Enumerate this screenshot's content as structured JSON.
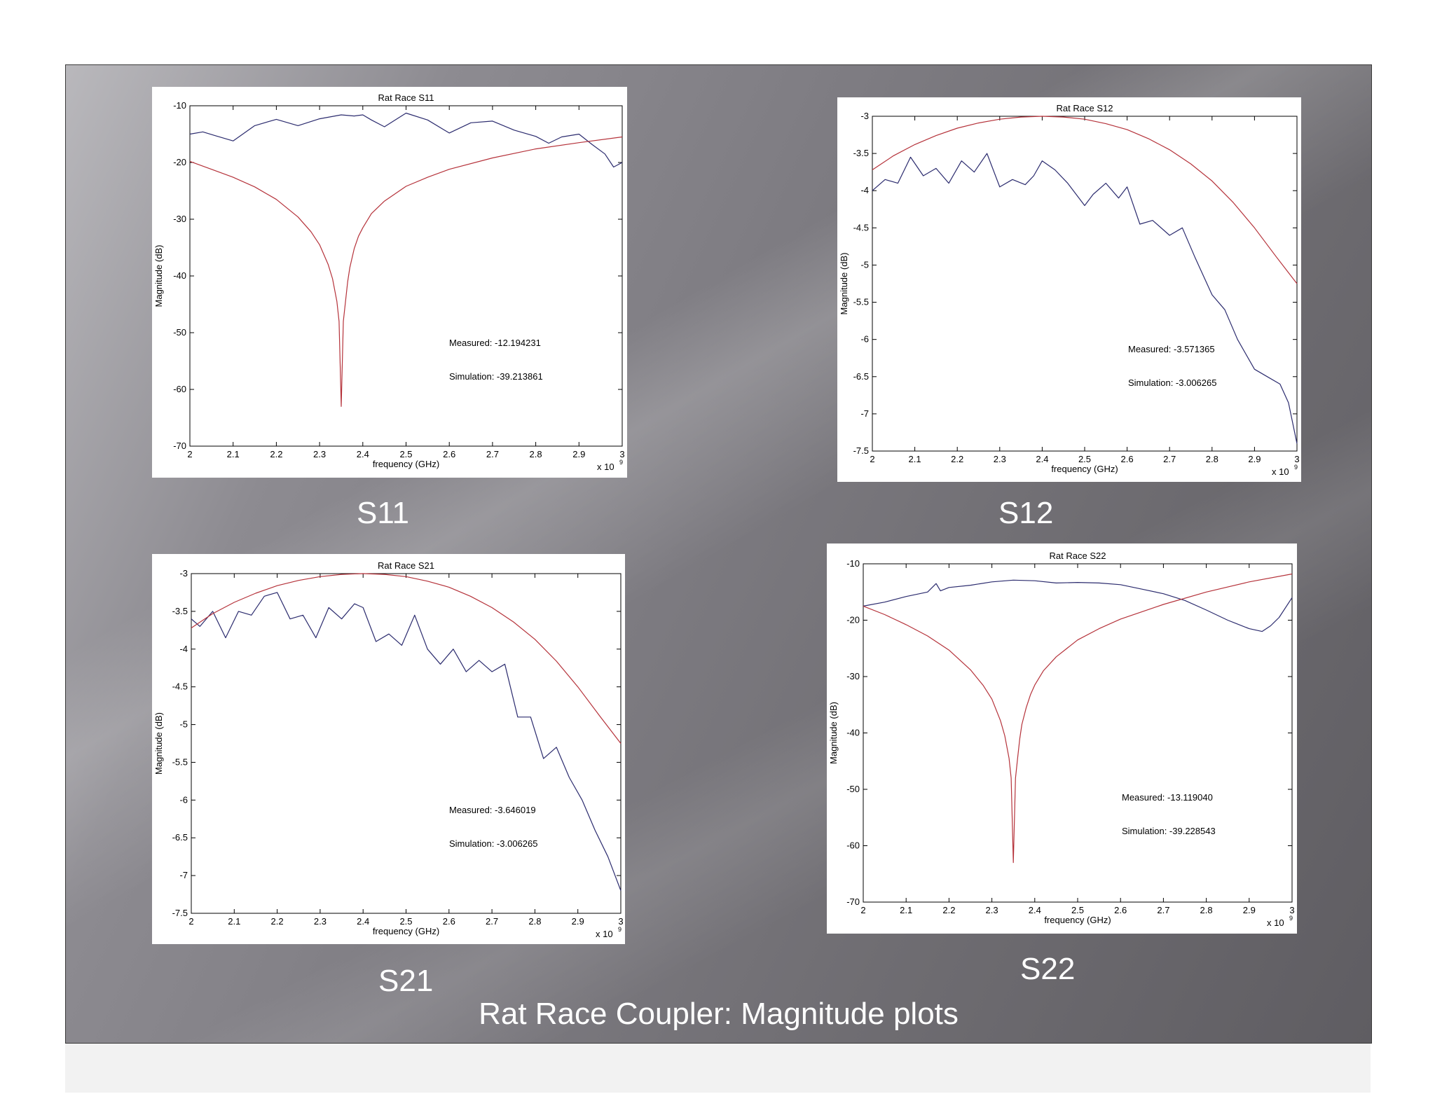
{
  "slide": {
    "title": "Rat Race Coupler: Magnitude plots",
    "background": "#77757a"
  },
  "labels": {
    "s11": "S11",
    "s12": "S12",
    "s21": "S21",
    "s22": "S22"
  },
  "colors": {
    "measured": "#2b2b6e",
    "simulation": "#b5323a",
    "frame": "#000000"
  },
  "chart_data": [
    {
      "id": "s11",
      "type": "line",
      "title": "Rat Race S11",
      "xlabel": "frequency (GHz)",
      "ylabel": "Magnitude (dB)",
      "x_multiplier": "x 10",
      "x_exponent": "9",
      "xlim": [
        2,
        3
      ],
      "ylim": [
        -70,
        -10
      ],
      "xticks": [
        "2",
        "2.1",
        "2.2",
        "2.3",
        "2.4",
        "2.5",
        "2.6",
        "2.7",
        "2.8",
        "2.9",
        "3"
      ],
      "yticks": [
        "-10",
        "-20",
        "-30",
        "-40",
        "-50",
        "-60",
        "-70"
      ],
      "annotations": [
        "Measured: -12.194231",
        "Simulation: -39.213861"
      ],
      "series": [
        {
          "role": "measured",
          "x": [
            2.0,
            2.03,
            2.06,
            2.1,
            2.15,
            2.2,
            2.25,
            2.3,
            2.35,
            2.38,
            2.4,
            2.42,
            2.45,
            2.5,
            2.55,
            2.6,
            2.65,
            2.7,
            2.75,
            2.8,
            2.83,
            2.86,
            2.9,
            2.93,
            2.96,
            2.98,
            3.0
          ],
          "y": [
            -15.0,
            -14.6,
            -15.3,
            -16.2,
            -13.5,
            -12.4,
            -13.5,
            -12.3,
            -11.6,
            -11.8,
            -11.6,
            -12.5,
            -13.7,
            -11.3,
            -12.5,
            -14.8,
            -13.0,
            -12.7,
            -14.3,
            -15.4,
            -16.6,
            -15.5,
            -15.0,
            -16.8,
            -18.5,
            -20.8,
            -20.0
          ]
        },
        {
          "role": "simulation",
          "x": [
            2.0,
            2.05,
            2.1,
            2.15,
            2.2,
            2.25,
            2.28,
            2.3,
            2.32,
            2.33,
            2.34,
            2.345,
            2.35,
            2.355,
            2.36,
            2.365,
            2.37,
            2.38,
            2.39,
            2.4,
            2.42,
            2.45,
            2.5,
            2.55,
            2.6,
            2.7,
            2.8,
            2.9,
            3.0
          ],
          "y": [
            -19.8,
            -21.2,
            -22.6,
            -24.3,
            -26.5,
            -29.6,
            -32.2,
            -34.5,
            -38.0,
            -40.5,
            -44.5,
            -48.0,
            -63.0,
            -48.0,
            -44.5,
            -41.0,
            -38.5,
            -35.2,
            -33.0,
            -31.5,
            -29.0,
            -26.8,
            -24.2,
            -22.6,
            -21.2,
            -19.2,
            -17.6,
            -16.5,
            -15.5
          ]
        }
      ]
    },
    {
      "id": "s12",
      "type": "line",
      "title": "Rat Race S12",
      "xlabel": "frequency (GHz)",
      "ylabel": "Magnitude (dB)",
      "x_multiplier": "x 10",
      "x_exponent": "9",
      "xlim": [
        2,
        3
      ],
      "ylim": [
        -7.5,
        -3
      ],
      "xticks": [
        "2",
        "2.1",
        "2.2",
        "2.3",
        "2.4",
        "2.5",
        "2.6",
        "2.7",
        "2.8",
        "2.9",
        "3"
      ],
      "yticks": [
        "-3",
        "-3.5",
        "-4",
        "-4.5",
        "-5",
        "-5.5",
        "-6",
        "-6.5",
        "-7",
        "-7.5"
      ],
      "annotations": [
        "Measured: -3.571365",
        "Simulation: -3.006265"
      ],
      "series": [
        {
          "role": "measured",
          "x": [
            2.0,
            2.03,
            2.06,
            2.09,
            2.12,
            2.15,
            2.18,
            2.21,
            2.24,
            2.27,
            2.3,
            2.33,
            2.36,
            2.38,
            2.4,
            2.43,
            2.46,
            2.5,
            2.52,
            2.55,
            2.58,
            2.6,
            2.63,
            2.66,
            2.7,
            2.73,
            2.76,
            2.8,
            2.83,
            2.86,
            2.9,
            2.93,
            2.96,
            2.98,
            3.0
          ],
          "y": [
            -4.0,
            -3.85,
            -3.9,
            -3.55,
            -3.8,
            -3.7,
            -3.9,
            -3.6,
            -3.75,
            -3.5,
            -3.95,
            -3.85,
            -3.92,
            -3.8,
            -3.6,
            -3.72,
            -3.9,
            -4.2,
            -4.05,
            -3.9,
            -4.1,
            -3.95,
            -4.45,
            -4.4,
            -4.6,
            -4.5,
            -4.9,
            -5.4,
            -5.6,
            -6.0,
            -6.4,
            -6.5,
            -6.6,
            -6.85,
            -7.4
          ]
        },
        {
          "role": "simulation",
          "x": [
            2.0,
            2.05,
            2.1,
            2.15,
            2.2,
            2.25,
            2.3,
            2.35,
            2.4,
            2.45,
            2.5,
            2.55,
            2.6,
            2.65,
            2.7,
            2.75,
            2.8,
            2.85,
            2.9,
            2.95,
            3.0
          ],
          "y": [
            -3.72,
            -3.53,
            -3.38,
            -3.26,
            -3.16,
            -3.09,
            -3.04,
            -3.01,
            -3.0,
            -3.01,
            -3.04,
            -3.1,
            -3.18,
            -3.3,
            -3.45,
            -3.64,
            -3.87,
            -4.16,
            -4.5,
            -4.88,
            -5.25
          ]
        }
      ]
    },
    {
      "id": "s21",
      "type": "line",
      "title": "Rat Race S21",
      "xlabel": "frequency (GHz)",
      "ylabel": "Magnitude (dB)",
      "x_multiplier": "x 10",
      "x_exponent": "9",
      "xlim": [
        2,
        3
      ],
      "ylim": [
        -7.5,
        -3
      ],
      "xticks": [
        "2",
        "2.1",
        "2.2",
        "2.3",
        "2.4",
        "2.5",
        "2.6",
        "2.7",
        "2.8",
        "2.9",
        "3"
      ],
      "yticks": [
        "-3",
        "-3.5",
        "-4",
        "-4.5",
        "-5",
        "-5.5",
        "-6",
        "-6.5",
        "-7",
        "-7.5"
      ],
      "annotations": [
        "Measured: -3.646019",
        "Simulation: -3.006265"
      ],
      "series": [
        {
          "role": "measured",
          "x": [
            2.0,
            2.02,
            2.05,
            2.08,
            2.11,
            2.14,
            2.17,
            2.2,
            2.23,
            2.26,
            2.29,
            2.32,
            2.35,
            2.38,
            2.4,
            2.43,
            2.46,
            2.49,
            2.52,
            2.55,
            2.58,
            2.61,
            2.64,
            2.67,
            2.7,
            2.73,
            2.76,
            2.79,
            2.82,
            2.85,
            2.88,
            2.91,
            2.94,
            2.97,
            3.0
          ],
          "y": [
            -3.6,
            -3.7,
            -3.5,
            -3.85,
            -3.5,
            -3.55,
            -3.3,
            -3.25,
            -3.6,
            -3.55,
            -3.85,
            -3.45,
            -3.6,
            -3.4,
            -3.45,
            -3.9,
            -3.8,
            -3.95,
            -3.55,
            -4.0,
            -4.2,
            -4.0,
            -4.3,
            -4.15,
            -4.3,
            -4.2,
            -4.9,
            -4.9,
            -5.45,
            -5.3,
            -5.7,
            -6.0,
            -6.4,
            -6.75,
            -7.2
          ]
        },
        {
          "role": "simulation",
          "x": [
            2.0,
            2.05,
            2.1,
            2.15,
            2.2,
            2.25,
            2.3,
            2.35,
            2.4,
            2.45,
            2.5,
            2.55,
            2.6,
            2.65,
            2.7,
            2.75,
            2.8,
            2.85,
            2.9,
            2.95,
            3.0
          ],
          "y": [
            -3.72,
            -3.53,
            -3.38,
            -3.26,
            -3.16,
            -3.09,
            -3.04,
            -3.01,
            -3.0,
            -3.01,
            -3.04,
            -3.1,
            -3.18,
            -3.3,
            -3.45,
            -3.64,
            -3.87,
            -4.16,
            -4.5,
            -4.88,
            -5.25
          ]
        }
      ]
    },
    {
      "id": "s22",
      "type": "line",
      "title": "Rat Race S22",
      "xlabel": "frequency (GHz)",
      "ylabel": "Magnitude (dB)",
      "x_multiplier": "x 10",
      "x_exponent": "9",
      "xlim": [
        2,
        3
      ],
      "ylim": [
        -70,
        -10
      ],
      "xticks": [
        "2",
        "2.1",
        "2.2",
        "2.3",
        "2.4",
        "2.5",
        "2.6",
        "2.7",
        "2.8",
        "2.9",
        "3"
      ],
      "yticks": [
        "-10",
        "-20",
        "-30",
        "-40",
        "-50",
        "-60",
        "-70"
      ],
      "annotations": [
        "Measured: -13.119040",
        "Simulation: -39.228543"
      ],
      "series": [
        {
          "role": "measured",
          "x": [
            2.0,
            2.05,
            2.1,
            2.15,
            2.17,
            2.18,
            2.2,
            2.25,
            2.3,
            2.35,
            2.4,
            2.45,
            2.5,
            2.55,
            2.6,
            2.65,
            2.7,
            2.75,
            2.8,
            2.85,
            2.9,
            2.93,
            2.95,
            2.97,
            3.0
          ],
          "y": [
            -17.5,
            -16.8,
            -15.8,
            -15.0,
            -13.5,
            -14.8,
            -14.2,
            -13.8,
            -13.2,
            -12.9,
            -13.0,
            -13.4,
            -13.3,
            -13.4,
            -13.7,
            -14.5,
            -15.3,
            -16.5,
            -18.2,
            -20.0,
            -21.5,
            -22.0,
            -21.0,
            -19.5,
            -16.0
          ]
        },
        {
          "role": "simulation",
          "x": [
            2.0,
            2.05,
            2.1,
            2.15,
            2.2,
            2.25,
            2.28,
            2.3,
            2.32,
            2.33,
            2.34,
            2.345,
            2.35,
            2.355,
            2.36,
            2.365,
            2.37,
            2.38,
            2.39,
            2.4,
            2.42,
            2.45,
            2.5,
            2.55,
            2.6,
            2.7,
            2.8,
            2.9,
            3.0
          ],
          "y": [
            -17.5,
            -19.0,
            -20.8,
            -22.8,
            -25.3,
            -28.8,
            -31.6,
            -34.0,
            -37.8,
            -40.5,
            -44.5,
            -48.0,
            -63.0,
            -48.0,
            -44.5,
            -41.0,
            -38.5,
            -35.5,
            -33.2,
            -31.5,
            -29.0,
            -26.5,
            -23.5,
            -21.5,
            -19.8,
            -17.2,
            -15.0,
            -13.2,
            -11.8
          ]
        }
      ]
    }
  ]
}
